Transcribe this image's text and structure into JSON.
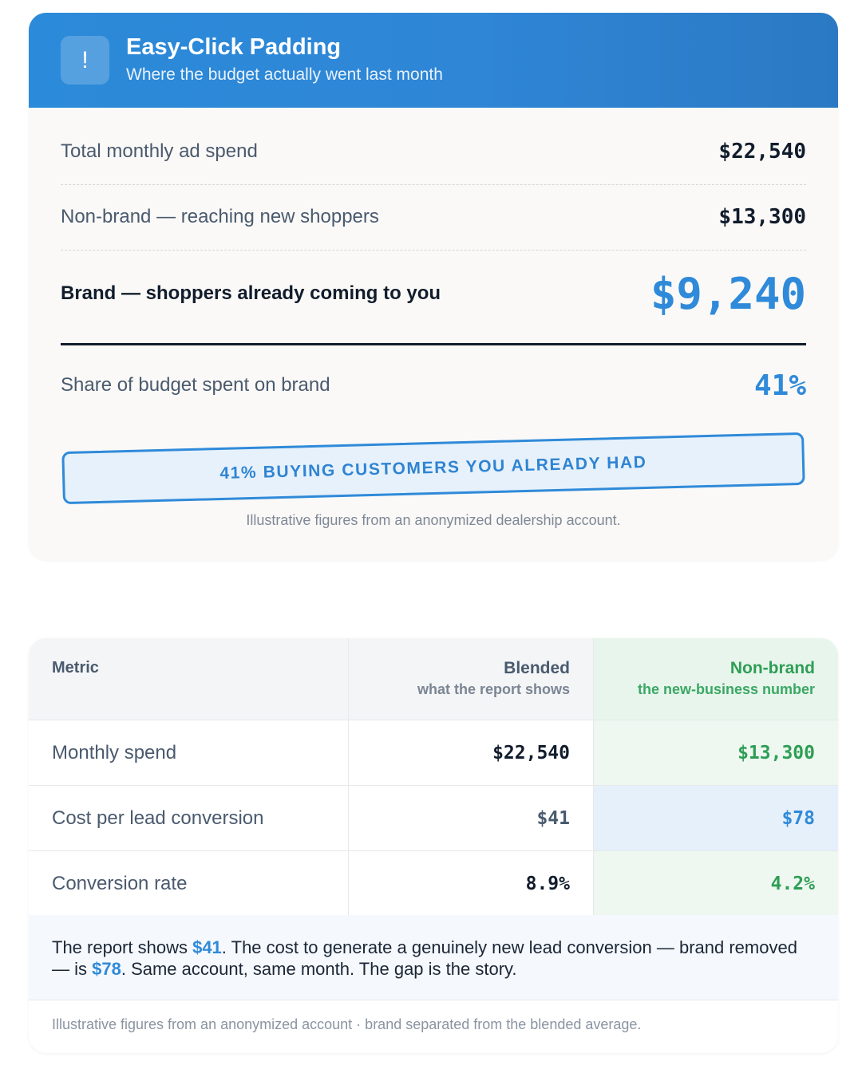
{
  "card1": {
    "badge_glyph": "!",
    "title": "Easy-Click Padding",
    "subtitle": "Where the budget actually went last month",
    "rows": [
      {
        "label": "Total monthly ad spend",
        "value": "$22,540"
      },
      {
        "label": "Non-brand — reaching new shoppers",
        "value": "$13,300"
      },
      {
        "label": "Brand — shoppers already coming to you",
        "value": "$9,240"
      },
      {
        "label": "Share of budget spent on brand",
        "value": "41%"
      }
    ],
    "stamp": "41% BUYING CUSTOMERS YOU ALREADY HAD",
    "footnote": "Illustrative figures from an anonymized dealership account.",
    "colors": {
      "header": "#2f86d6",
      "accent": "#2f8ad9",
      "text": "#111c2c"
    }
  },
  "table": {
    "headers": {
      "metric": "Metric",
      "blended": "Blended",
      "blended_sub": "what the report shows",
      "nonbrand": "Non-brand",
      "nonbrand_sub": "the new-business number"
    },
    "rows": [
      {
        "metric": "Monthly spend",
        "blended": "$22,540",
        "nonbrand": "$13,300"
      },
      {
        "metric": "Cost per lead conversion",
        "blended": "$41",
        "nonbrand": "$78"
      },
      {
        "metric": "Conversion rate",
        "blended": "8.9%",
        "nonbrand": "4.2%"
      }
    ],
    "summary": {
      "p1": "The report shows ",
      "v1": "$41",
      "p2": ". The cost to generate a genuinely new lead conversion — brand removed — is ",
      "v2": "$78",
      "p3": ". Same account, same month. The gap is the story."
    },
    "footnote": "Illustrative figures from an anonymized account · brand separated from the blended average.",
    "colors": {
      "nonbrand": "#2e9e55",
      "highlight": "#2f8ad9"
    }
  }
}
